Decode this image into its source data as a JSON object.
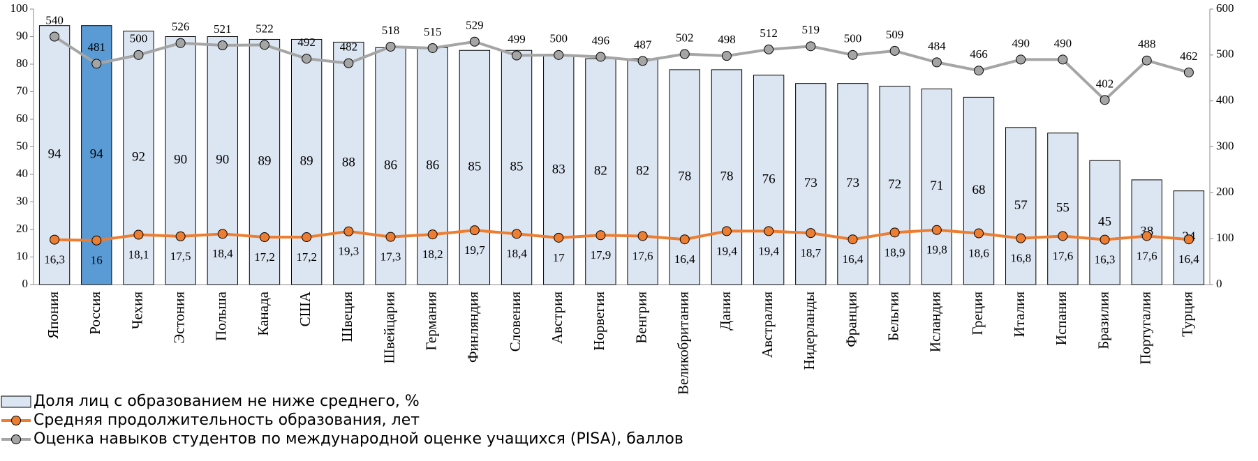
{
  "chart_data": {
    "type": "bar",
    "categories": [
      "Япония",
      "Россия",
      "Чехия",
      "Эстония",
      "Польша",
      "Канада",
      "США",
      "Швеция",
      "Швейцария",
      "Германия",
      "Финляндия",
      "Словения",
      "Австрия",
      "Норвегия",
      "Венгрия",
      "Великобритания",
      "Дания",
      "Австралия",
      "Нидерланды",
      "Франция",
      "Бельгия",
      "Исландия",
      "Греция",
      "Италия",
      "Испания",
      "Бразилия",
      "Португалия",
      "Турция"
    ],
    "series": [
      {
        "name": "Доля лиц с образованием не ниже среднего, %",
        "type": "bar",
        "color": "#dce6f2",
        "colors": [
          "#dce6f2",
          "#5b9bd5",
          "#dce6f2",
          "#dce6f2",
          "#dce6f2",
          "#dce6f2",
          "#dce6f2",
          "#dce6f2",
          "#dce6f2",
          "#dce6f2",
          "#dce6f2",
          "#dce6f2",
          "#dce6f2",
          "#dce6f2",
          "#dce6f2",
          "#dce6f2",
          "#dce6f2",
          "#dce6f2",
          "#dce6f2",
          "#dce6f2",
          "#dce6f2",
          "#dce6f2",
          "#dce6f2",
          "#dce6f2",
          "#dce6f2",
          "#dce6f2",
          "#dce6f2",
          "#dce6f2"
        ],
        "values": [
          94,
          94,
          92,
          90,
          90,
          89,
          89,
          88,
          86,
          86,
          85,
          85,
          83,
          82,
          82,
          78,
          78,
          76,
          73,
          73,
          72,
          71,
          68,
          57,
          55,
          45,
          38,
          34
        ]
      },
      {
        "name": "Средняя продолжительность образования, лет",
        "type": "line",
        "color": "#ed7d31",
        "values": [
          16.3,
          16,
          18.1,
          17.5,
          18.4,
          17.2,
          17.2,
          19.3,
          17.3,
          18.2,
          19.7,
          18.4,
          17,
          17.9,
          17.6,
          16.4,
          19.4,
          19.4,
          18.7,
          16.4,
          18.9,
          19.8,
          18.6,
          16.8,
          17.6,
          16.3,
          17.6,
          16.4
        ],
        "value_labels": [
          "16,3",
          "16",
          "18,1",
          "17,5",
          "18,4",
          "17,2",
          "17,2",
          "19,3",
          "17,3",
          "18,2",
          "19,7",
          "18,4",
          "17",
          "17,9",
          "17,6",
          "16,4",
          "19,4",
          "19,4",
          "18,7",
          "16,4",
          "18,9",
          "19,8",
          "18,6",
          "16,8",
          "17,6",
          "16,3",
          "17,6",
          "16,4"
        ]
      },
      {
        "name": "Оценка навыков студентов по международной оценке учащихся (PISA), баллов",
        "type": "line",
        "axis": "y2",
        "color": "#a5a5a5",
        "values": [
          540,
          481,
          500,
          526,
          521,
          522,
          492,
          482,
          518,
          515,
          529,
          499,
          500,
          496,
          487,
          502,
          498,
          512,
          519,
          500,
          509,
          484,
          466,
          490,
          490,
          402,
          488,
          462
        ]
      }
    ],
    "ylim": [
      0,
      100
    ],
    "yticks": [
      0,
      10,
      20,
      30,
      40,
      50,
      60,
      70,
      80,
      90,
      100
    ],
    "y2lim": [
      0,
      600
    ],
    "y2ticks": [
      0,
      100,
      200,
      300,
      400,
      500,
      600
    ],
    "legend": "bottom-left"
  }
}
